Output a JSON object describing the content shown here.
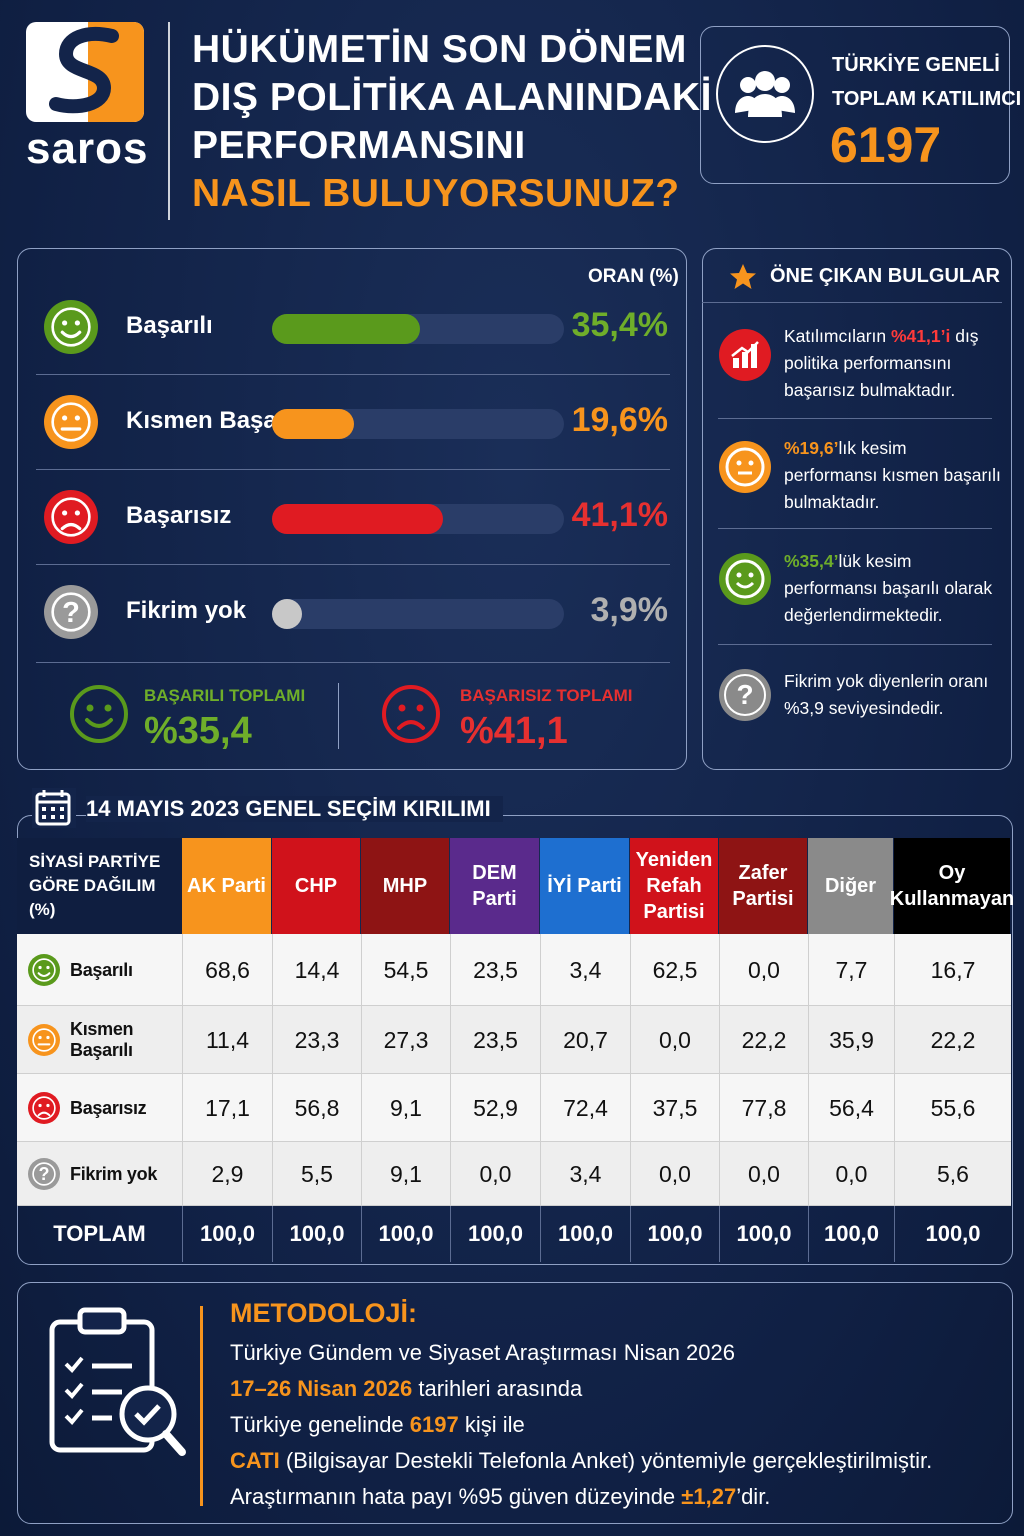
{
  "header": {
    "logo_text": "saros",
    "title_lines": [
      "HÜKÜMETİN SON DÖNEM",
      "DIŞ POLİTİKA ALANINDAKİ",
      "PERFORMANSINI",
      "NASIL BULUYORSUNUZ?"
    ],
    "participants_label_1": "TÜRKİYE GENELİ",
    "participants_label_2": "TOPLAM KATILIMCI",
    "participants_count": "6197"
  },
  "chart_data": {
    "type": "bar",
    "oran_label": "ORAN (%)",
    "categories": [
      "Başarılı",
      "Kısmen Başarılı",
      "Başarısız",
      "Fikrim yok"
    ],
    "values": [
      35.4,
      19.6,
      41.1,
      3.9
    ],
    "value_labels": [
      "35,4%",
      "19,6%",
      "41,1%",
      "3,9%"
    ],
    "colors": [
      "#5a9a1c",
      "#f7941d",
      "#e01b22",
      "#9a9a9a"
    ],
    "bar_max": 70,
    "totals": {
      "success_label": "BAŞARILI TOPLAMI",
      "success_value": "%35,4",
      "fail_label": "BAŞARISIZ TOPLAMI",
      "fail_value": "%41,1"
    }
  },
  "highlights": {
    "title": "ÖNE ÇIKAN BULGULAR",
    "items": [
      {
        "pre": "Katılımcıların ",
        "em": "%41,1’i",
        "post": " dış politika performansını başarısız bulmaktadır.",
        "color": "#e01b22"
      },
      {
        "pre": "",
        "em": "%19,6’",
        "post": "lık kesim performansı kısmen başarılı bulmaktadır.",
        "color": "#f7941d"
      },
      {
        "pre": "",
        "em": "%35,4’",
        "post": "lük kesim performansı başarılı olarak değerlendirmektedir.",
        "color": "#5a9a1c"
      },
      {
        "pre": "Fikrim yok diyenlerin oranı %3,9 seviyesindedir.",
        "em": "",
        "post": "",
        "color": "#ffffff"
      }
    ]
  },
  "table": {
    "title": "14 MAYIS 2023 GENEL SEÇİM KIRILIMI",
    "corner_label": "SİYASİ PARTİYE GÖRE DAĞILIM (%)",
    "columns": [
      {
        "name": "AK Parti",
        "color": "#f7941d"
      },
      {
        "name": "CHP",
        "color": "#d0121b"
      },
      {
        "name": "MHP",
        "color": "#8e1414"
      },
      {
        "name": "DEM Parti",
        "color": "#5a2a8c"
      },
      {
        "name": "İYİ Parti",
        "color": "#1e6fd0"
      },
      {
        "name": "Yeniden Refah Partisi",
        "color": "#d0121b"
      },
      {
        "name": "Zafer Partisi",
        "color": "#8e1414"
      },
      {
        "name": "Diğer",
        "color": "#8a8a8a"
      },
      {
        "name": "Oy Kullanmayan",
        "color": "#000000"
      }
    ],
    "rows": [
      {
        "label": "Başarılı",
        "values": [
          "68,6",
          "14,4",
          "54,5",
          "23,5",
          "3,4",
          "62,5",
          "0,0",
          "7,7",
          "16,7"
        ]
      },
      {
        "label": "Kısmen Başarılı",
        "values": [
          "11,4",
          "23,3",
          "27,3",
          "23,5",
          "20,7",
          "0,0",
          "22,2",
          "35,9",
          "22,2"
        ]
      },
      {
        "label": "Başarısız",
        "values": [
          "17,1",
          "56,8",
          "9,1",
          "52,9",
          "72,4",
          "37,5",
          "77,8",
          "56,4",
          "55,6"
        ]
      },
      {
        "label": "Fikrim yok",
        "values": [
          "2,9",
          "5,5",
          "9,1",
          "0,0",
          "3,4",
          "0,0",
          "0,0",
          "0,0",
          "5,6"
        ]
      }
    ],
    "total_label": "TOPLAM",
    "totals": [
      "100,0",
      "100,0",
      "100,0",
      "100,0",
      "100,0",
      "100,0",
      "100,0",
      "100,0",
      "100,0"
    ]
  },
  "methodology": {
    "title": "METODOLOJİ:",
    "line1": "Türkiye Gündem ve Siyaset Araştırması Nisan 2026",
    "line2_em": "17–26 Nisan 2026",
    "line2_rest": " tarihleri arasında",
    "line3_pre": "Türkiye genelinde ",
    "line3_em": "6197",
    "line3_post": " kişi ile",
    "line4_em": "CATI",
    "line4_rest": " (Bilgisayar Destekli Telefonla Anket) yöntemiyle gerçekleştirilmiştir.",
    "line5_pre": "Araştırmanın hata payı %95 güven düzeyinde ",
    "line5_em": "±1,27",
    "line5_post": "’dir."
  }
}
